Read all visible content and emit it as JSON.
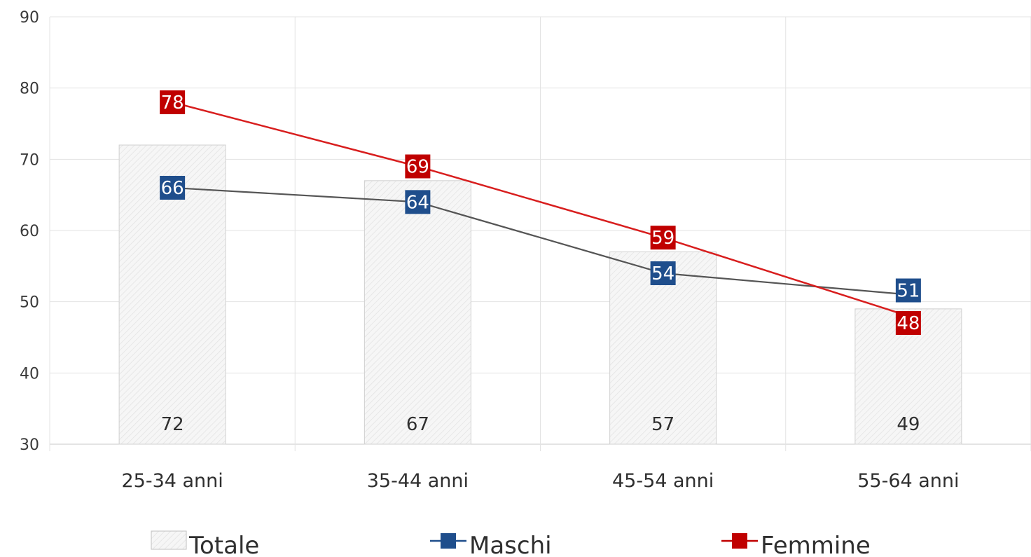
{
  "chart_data": {
    "type": "bar",
    "categories": [
      "25-34 anni",
      "35-44 anni",
      "45-54 anni",
      "55-64 anni"
    ],
    "ylim": [
      30,
      90
    ],
    "yticks": [
      30,
      40,
      50,
      60,
      70,
      80,
      90
    ],
    "grid": true,
    "legend_position": "bottom",
    "series": [
      {
        "name": "Totale",
        "kind": "bar",
        "values": [
          72,
          67,
          57,
          49
        ],
        "labels": [
          "72",
          "67",
          "57",
          "49"
        ],
        "color": "#f2f2f2"
      },
      {
        "name": "Maschi",
        "kind": "line",
        "values": [
          66,
          64,
          54,
          51
        ],
        "labels": [
          "66",
          "64",
          "54",
          "51"
        ],
        "color": "#1f4e8c",
        "line_color": "#555555"
      },
      {
        "name": "Femmine",
        "kind": "line",
        "values": [
          78,
          69,
          59,
          48
        ],
        "labels": [
          "78",
          "69",
          "59",
          "48"
        ],
        "color": "#c00000",
        "line_color": "#d81e1e"
      }
    ]
  }
}
